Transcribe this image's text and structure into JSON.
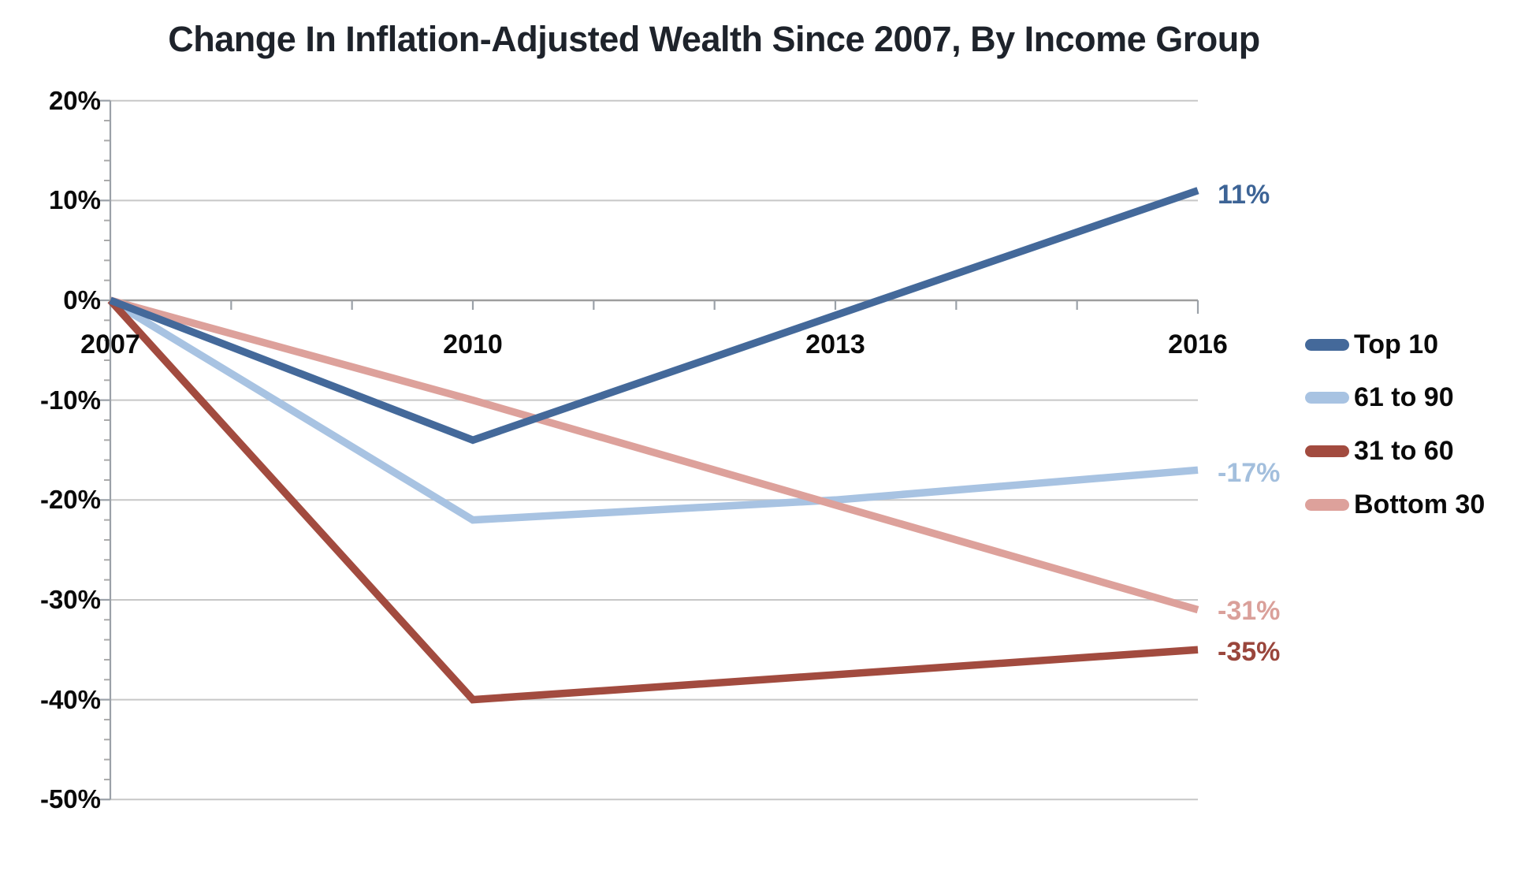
{
  "chart_data": {
    "type": "line",
    "title": "Change In Inflation-Adjusted Wealth Since 2007, By Income Group",
    "x": [
      2007,
      2010,
      2013,
      2016
    ],
    "x_tick_labels": [
      "2007",
      "2010",
      "2013",
      "2016"
    ],
    "y_ticks": [
      20,
      10,
      0,
      -10,
      -20,
      -30,
      -40,
      -50
    ],
    "y_tick_labels": [
      "20%",
      "10%",
      "0%",
      "-10%",
      "-20%",
      "-30%",
      "-40%",
      "-50%"
    ],
    "ylim": [
      -50,
      20
    ],
    "xlabel": "",
    "ylabel": "",
    "grid": "horizontal",
    "legend_position": "right",
    "series": [
      {
        "name": "Top 10",
        "color": "#44699a",
        "values": [
          0,
          -14,
          -1.5,
          11
        ],
        "end_label": "11%",
        "end_label_color": "#3d6496"
      },
      {
        "name": "61 to 90",
        "color": "#a8c3e2",
        "values": [
          0,
          -22,
          -20,
          -17
        ],
        "end_label": "-17%",
        "end_label_color": "#a3bfdd"
      },
      {
        "name": "31 to 60",
        "color": "#a24b3f",
        "values": [
          0,
          -40,
          -37.5,
          -35
        ],
        "end_label": "-35%",
        "end_label_color": "#9a463c"
      },
      {
        "name": "Bottom 30",
        "color": "#dda19b",
        "values": [
          0,
          -10,
          -20.5,
          -31
        ],
        "end_label": "-31%",
        "end_label_color": "#daa09a"
      }
    ],
    "colors": {
      "gridline": "#c7c7c7",
      "zero_axis": "#9e9e9e",
      "axis": "#9ba1a8",
      "minor_tick": "#aaaaaa",
      "title_text": "#1e232b",
      "tick_text": "#0a0a0a"
    }
  }
}
